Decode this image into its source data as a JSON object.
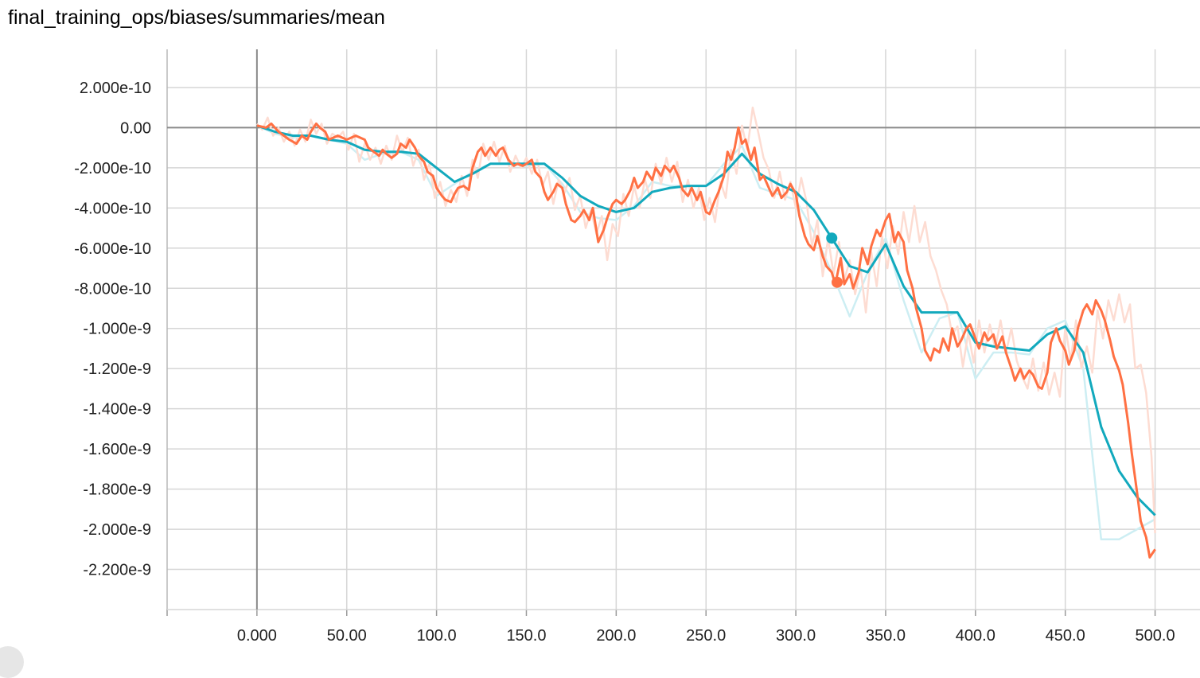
{
  "chart_title": "final_training_ops/biases/summaries/mean",
  "chart_data": {
    "type": "line",
    "title": "final_training_ops/biases/summaries/mean",
    "xlabel": "",
    "ylabel": "",
    "xlim": [
      -50,
      525
    ],
    "ylim": [
      -2.4e-09,
      3.9e-10
    ],
    "x_ticks": [
      0,
      50,
      100,
      150,
      200,
      250,
      300,
      350,
      400,
      450,
      500
    ],
    "x_tick_labels": [
      "0.000",
      "50.00",
      "100.0",
      "150.0",
      "200.0",
      "250.0",
      "300.0",
      "350.0",
      "400.0",
      "450.0",
      "500.0"
    ],
    "y_ticks": [
      2e-10,
      0,
      -2e-10,
      -4e-10,
      -6e-10,
      -8e-10,
      -1e-09,
      -1.2e-09,
      -1.4e-09,
      -1.6e-09,
      -1.8e-09,
      -2e-09,
      -2.2e-09
    ],
    "y_tick_labels": [
      "2.000e-10",
      "0.00",
      "-2.000e-10",
      "-4.000e-10",
      "-6.000e-10",
      "-8.000e-10",
      "-1.000e-9",
      "-1.200e-9",
      "-1.400e-9",
      "-1.600e-9",
      "-1.800e-9",
      "-2.000e-9",
      "-2.200e-9"
    ],
    "grid": true,
    "series": [
      {
        "color": "#12a9bd",
        "raw_color": "#cdeef3",
        "smoothed_x": [
          0,
          10,
          20,
          30,
          40,
          50,
          60,
          70,
          80,
          90,
          100,
          110,
          120,
          130,
          140,
          150,
          160,
          170,
          180,
          190,
          200,
          210,
          220,
          230,
          240,
          250,
          260,
          270,
          280,
          290,
          300,
          310,
          320,
          330,
          340,
          350,
          360,
          370,
          380,
          390,
          400,
          410,
          420,
          430,
          440,
          450,
          460,
          470,
          480,
          490,
          500
        ],
        "smoothed_y": [
          1e-11,
          -2e-11,
          -4e-11,
          -4e-11,
          -6e-11,
          -7e-11,
          -1.1e-10,
          -1.2e-10,
          -1.2e-10,
          -1.3e-10,
          -2e-10,
          -2.7e-10,
          -2.3e-10,
          -1.8e-10,
          -1.8e-10,
          -1.8e-10,
          -1.8e-10,
          -2.5e-10,
          -3.4e-10,
          -3.9e-10,
          -4.2e-10,
          -4e-10,
          -3.2e-10,
          -3e-10,
          -2.9e-10,
          -2.9e-10,
          -2.3e-10,
          -1.3e-10,
          -2.3e-10,
          -2.8e-10,
          -3.2e-10,
          -4.1e-10,
          -5.5e-10,
          -6.9e-10,
          -7.2e-10,
          -5.8e-10,
          -7.9e-10,
          -9.2e-10,
          -9.2e-10,
          -9.2e-10,
          -1.07e-09,
          -1.09e-09,
          -1.1e-09,
          -1.11e-09,
          -1.03e-09,
          -9.9e-10,
          -1.12e-09,
          -1.49e-09,
          -1.71e-09,
          -1.84e-09,
          -1.93e-09
        ],
        "raw_x": [
          0,
          10,
          20,
          30,
          40,
          50,
          60,
          70,
          80,
          90,
          100,
          110,
          120,
          130,
          140,
          150,
          160,
          170,
          180,
          190,
          200,
          210,
          220,
          230,
          240,
          250,
          260,
          270,
          280,
          290,
          300,
          310,
          320,
          330,
          340,
          350,
          360,
          370,
          380,
          390,
          400,
          410,
          420,
          430,
          440,
          450,
          460,
          470,
          480,
          490,
          500
        ],
        "raw_y": [
          1e-11,
          -3e-11,
          -5e-11,
          -4e-11,
          -6e-11,
          -8e-11,
          -1.6e-10,
          -1.3e-10,
          -1.2e-10,
          -1.6e-10,
          -3.4e-10,
          -2.8e-10,
          -2.2e-10,
          -1.8e-10,
          -1.8e-10,
          -1.9e-10,
          -1.8e-10,
          -2.8e-10,
          -4.2e-10,
          -4.5e-10,
          -4.6e-10,
          -3.9e-10,
          -2.7e-10,
          -2.9e-10,
          -2.9e-10,
          -2.9e-10,
          -1.8e-10,
          -9e-11,
          -3e-10,
          -3.3e-10,
          -3.6e-10,
          -5.2e-10,
          -7.2e-10,
          -9.4e-10,
          -7.2e-10,
          -5.5e-10,
          -8.6e-10,
          -1.12e-09,
          -9.5e-10,
          -9.2e-10,
          -1.25e-09,
          -1.12e-09,
          -1.12e-09,
          -1.13e-09,
          -1e-09,
          -9.6e-10,
          -1.2e-09,
          -2.05e-09,
          -2.05e-09,
          -2e-09,
          -1.95e-09
        ]
      },
      {
        "color": "#ff7043",
        "raw_color": "#fddcd2",
        "smoothed_x": [
          0,
          5,
          8,
          12,
          15,
          18,
          22,
          25,
          28,
          30,
          33,
          35,
          38,
          40,
          45,
          50,
          55,
          60,
          62,
          65,
          68,
          70,
          72,
          75,
          78,
          80,
          83,
          85,
          88,
          90,
          93,
          95,
          98,
          100,
          103,
          105,
          108,
          110,
          112,
          115,
          118,
          120,
          123,
          125,
          127,
          130,
          133,
          135,
          137,
          140,
          143,
          145,
          148,
          150,
          153,
          155,
          158,
          160,
          162,
          165,
          167,
          170,
          172,
          175,
          177,
          180,
          182,
          185,
          187,
          190,
          193,
          195,
          198,
          200,
          203,
          205,
          208,
          210,
          212,
          215,
          217,
          220,
          222,
          225,
          227,
          230,
          232,
          235,
          237,
          240,
          242,
          245,
          247,
          250,
          252,
          255,
          257,
          260,
          262,
          264,
          266,
          268,
          270,
          272,
          275,
          277,
          280,
          282,
          285,
          287,
          290,
          292,
          295,
          297,
          300,
          302,
          305,
          307,
          310,
          312,
          315,
          317,
          320,
          322,
          325,
          327,
          330,
          332,
          335,
          337,
          340,
          342,
          345,
          347,
          350,
          352,
          355,
          357,
          360,
          362,
          365,
          367,
          370,
          372,
          375,
          377,
          380,
          382,
          385,
          387,
          390,
          392,
          395,
          397,
          400,
          402,
          405,
          407,
          410,
          412,
          415,
          417,
          420,
          422,
          425,
          427,
          430,
          432,
          435,
          437,
          440,
          442,
          445,
          447,
          450,
          452,
          455,
          457,
          460,
          462,
          465,
          467,
          470,
          472,
          475,
          477,
          480,
          482,
          485,
          487,
          490,
          492,
          495,
          497,
          500
        ],
        "smoothed_y": [
          1e-11,
          0.0,
          2e-11,
          -2e-11,
          -4e-11,
          -6e-11,
          -8e-11,
          -4e-11,
          -6e-11,
          -2e-11,
          2e-11,
          0.0,
          -2e-11,
          -6e-11,
          -4e-11,
          -6e-11,
          -4e-11,
          -6e-11,
          -1e-10,
          -1.2e-10,
          -1.4e-10,
          -1.1e-10,
          -1.3e-10,
          -1.5e-10,
          -1.3e-10,
          -8e-11,
          -1e-10,
          -6e-11,
          -1e-10,
          -1.4e-10,
          -1.7e-10,
          -2.2e-10,
          -2.4e-10,
          -3e-10,
          -3.4e-10,
          -3.6e-10,
          -3.7e-10,
          -3.3e-10,
          -3e-10,
          -2.9e-10,
          -3.1e-10,
          -2e-10,
          -1.2e-10,
          -1e-10,
          -1.4e-10,
          -1e-10,
          -1.4e-10,
          -1.1e-10,
          -1e-10,
          -1.6e-10,
          -1.9e-10,
          -1.8e-10,
          -1.9e-10,
          -1.8e-10,
          -1.6e-10,
          -2.2e-10,
          -2.5e-10,
          -3.2e-10,
          -3.6e-10,
          -3.2e-10,
          -2.8e-10,
          -3e-10,
          -3.8e-10,
          -4.6e-10,
          -4.7e-10,
          -4.4e-10,
          -4.1e-10,
          -4.6e-10,
          -4e-10,
          -5.7e-10,
          -5.1e-10,
          -4.5e-10,
          -3.8e-10,
          -3.6e-10,
          -3.8e-10,
          -3.6e-10,
          -3.1e-10,
          -2.5e-10,
          -3e-10,
          -2.7e-10,
          -2.2e-10,
          -2.6e-10,
          -2e-10,
          -2.4e-10,
          -1.9e-10,
          -2.2e-10,
          -1.9e-10,
          -2.5e-10,
          -3.1e-10,
          -3.4e-10,
          -3e-10,
          -3.6e-10,
          -3.2e-10,
          -4.2e-10,
          -4.3e-10,
          -3.6e-10,
          -3.2e-10,
          -2.4e-10,
          -1.2e-10,
          -1.6e-10,
          -1e-10,
          0.0,
          -8e-11,
          -6e-11,
          -1.6e-10,
          -1e-10,
          -2.6e-10,
          -2.4e-10,
          -3e-10,
          -3.4e-10,
          -3e-10,
          -3.5e-10,
          -3.2e-10,
          -2.8e-10,
          -3.3e-10,
          -4.4e-10,
          -5.4e-10,
          -5.8e-10,
          -6.1e-10,
          -5.4e-10,
          -6.4e-10,
          -6.9e-10,
          -7.2e-10,
          -7.8e-10,
          -6.5e-10,
          -7.8e-10,
          -7.3e-10,
          -8e-10,
          -7.2e-10,
          -6e-10,
          -6.8e-10,
          -5.9e-10,
          -5.1e-10,
          -5.4e-10,
          -4.6e-10,
          -4.3e-10,
          -5.7e-10,
          -5.2e-10,
          -5.7e-10,
          -7.1e-10,
          -8e-10,
          -9e-10,
          -1e-09,
          -1.11e-09,
          -1.16e-09,
          -1.1e-09,
          -1.12e-09,
          -1.05e-09,
          -1.11e-09,
          -1e-09,
          -1.09e-09,
          -1.06e-09,
          -1e-09,
          -9.8e-10,
          -1.05e-09,
          -1.1e-09,
          -1.02e-09,
          -1.06e-09,
          -1.03e-09,
          -1.1e-09,
          -1.04e-09,
          -1.12e-09,
          -1.2e-09,
          -1.26e-09,
          -1.2e-09,
          -1.25e-09,
          -1.21e-09,
          -1.23e-09,
          -1.29e-09,
          -1.3e-09,
          -1.22e-09,
          -1.07e-09,
          -1e-09,
          -1.06e-09,
          -1.11e-09,
          -1.18e-09,
          -1.11e-09,
          -1e-09,
          -9.1e-10,
          -8.8e-10,
          -9.3e-10,
          -8.6e-10,
          -9.1e-10,
          -9.6e-10,
          -1.06e-09,
          -1.14e-09,
          -1.21e-09,
          -1.28e-09,
          -1.47e-09,
          -1.62e-09,
          -1.82e-09,
          -1.96e-09,
          -2.04e-09,
          -2.14e-09,
          -2.1e-09,
          -2.06e-09,
          -1.93e-09,
          -1.98e-09,
          -1.89e-09,
          -1.87e-09,
          -1.93e-09,
          -1.96e-09,
          -1.92e-09,
          -1.97e-09,
          -1.95e-09
        ],
        "raw_x": [
          0,
          3,
          6,
          9,
          12,
          15,
          18,
          21,
          24,
          27,
          30,
          33,
          36,
          39,
          42,
          45,
          48,
          51,
          54,
          57,
          60,
          63,
          66,
          69,
          72,
          75,
          78,
          81,
          84,
          87,
          90,
          93,
          96,
          99,
          102,
          105,
          108,
          111,
          114,
          117,
          120,
          123,
          126,
          129,
          132,
          135,
          138,
          141,
          144,
          147,
          150,
          153,
          156,
          159,
          162,
          165,
          168,
          171,
          174,
          177,
          180,
          183,
          186,
          189,
          192,
          195,
          198,
          201,
          204,
          207,
          210,
          213,
          216,
          219,
          222,
          225,
          228,
          231,
          234,
          237,
          240,
          243,
          246,
          249,
          252,
          255,
          258,
          261,
          264,
          267,
          270,
          273,
          276,
          279,
          282,
          285,
          288,
          291,
          294,
          297,
          300,
          303,
          306,
          309,
          312,
          315,
          318,
          321,
          324,
          327,
          330,
          333,
          336,
          339,
          342,
          345,
          348,
          351,
          354,
          357,
          360,
          363,
          366,
          369,
          372,
          375,
          378,
          381,
          384,
          387,
          390,
          393,
          396,
          399,
          402,
          405,
          408,
          411,
          414,
          417,
          420,
          423,
          426,
          429,
          432,
          435,
          438,
          441,
          444,
          447,
          450,
          453,
          456,
          459,
          462,
          465,
          468,
          471,
          474,
          477,
          480,
          483,
          486,
          489,
          492,
          495,
          498,
          500
        ],
        "raw_y": [
          2e-11,
          -1e-11,
          5e-11,
          -4e-11,
          0.0,
          -7e-11,
          -2e-11,
          -9e-11,
          -1e-11,
          -7e-11,
          4e-11,
          -3e-11,
          2e-11,
          -8e-11,
          -3e-11,
          -5e-11,
          -2e-11,
          -1.1e-10,
          -3e-11,
          -1.7e-10,
          -8e-11,
          -1.6e-10,
          -1e-10,
          -1.8e-10,
          -9e-11,
          -1.6e-10,
          -4e-11,
          -1.2e-10,
          -5e-11,
          -1.9e-10,
          -1.1e-10,
          -2.6e-10,
          -1.8e-10,
          -3.5e-10,
          -2.7e-10,
          -3.9e-10,
          -3.1e-10,
          -3.7e-10,
          -2.4e-10,
          -3.4e-10,
          -1.6e-10,
          -2.5e-10,
          -8e-11,
          -1.6e-10,
          -7e-11,
          -1.7e-10,
          -9e-11,
          -2.2e-10,
          -1.4e-10,
          -2e-10,
          -1.5e-10,
          -2.3e-10,
          -1.6e-10,
          -2.9e-10,
          -2.2e-10,
          -3.8e-10,
          -2.6e-10,
          -3.3e-10,
          -2.5e-10,
          -4.1e-10,
          -3.4e-10,
          -5e-10,
          -4.1e-10,
          -5.3e-10,
          -4.4e-10,
          -6.6e-10,
          -4.8e-10,
          -5.4e-10,
          -3.3e-10,
          -4.4e-10,
          -2.9e-10,
          -4e-10,
          -2.6e-10,
          -3.5e-10,
          -1.8e-10,
          -2.8e-10,
          -1.5e-10,
          -2.7e-10,
          -1.7e-10,
          -3.7e-10,
          -2.6e-10,
          -4e-10,
          -3e-10,
          -4.6e-10,
          -3.5e-10,
          -4.7e-10,
          -2.7e-10,
          -3.5e-10,
          -1.1e-10,
          -2.3e-10,
          1e-11,
          -1.1e-10,
          1e-10,
          -2e-11,
          -1.5e-10,
          -2.1e-10,
          -3.5e-10,
          -2.2e-10,
          -3.6e-10,
          -2.7e-10,
          -4e-10,
          -2.5e-10,
          -3.7e-10,
          -5.9e-10,
          -4.6e-10,
          -7.4e-10,
          -5.5e-10,
          -7.3e-10,
          -5.7e-10,
          -7.6e-10,
          -6.6e-10,
          -8.3e-10,
          -7e-10,
          -9.2e-10,
          -6.2e-10,
          -7.9e-10,
          -5.4e-10,
          -7e-10,
          -4.9e-10,
          -6.3e-10,
          -4.2e-10,
          -5.7e-10,
          -3.9e-10,
          -5.7e-10,
          -4.7e-10,
          -6.4e-10,
          -7.1e-10,
          -8.1e-10,
          -8.8e-10,
          -1.03e-09,
          -9.9e-10,
          -1.19e-09,
          -1.02e-09,
          -1.17e-09,
          -9.6e-10,
          -1.12e-09,
          -9.8e-10,
          -1.1e-09,
          -9.6e-10,
          -1.12e-09,
          -1e-09,
          -1.16e-09,
          -1.24e-09,
          -1.3e-09,
          -1.15e-09,
          -1.31e-09,
          -1.17e-09,
          -1.33e-09,
          -1.22e-09,
          -1.34e-09,
          -9.9e-10,
          -1.16e-09,
          -9.6e-10,
          -1.2e-09,
          -1.09e-09,
          -1.22e-09,
          -9.1e-10,
          -1.05e-09,
          -8.6e-10,
          -9.6e-10,
          -8.3e-10,
          -9.7e-10,
          -8.8e-10,
          -1.2e-09,
          -1.18e-09,
          -1.32e-09,
          -1.64e-09,
          -2.02e-09,
          -2.18e-09,
          -2.2e-09,
          -2e-09,
          -2.06e-09,
          -1.87e-09,
          -1.99e-09,
          -1.85e-09,
          -1.99e-09,
          -1.92e-09,
          -1.96e-09
        ]
      }
    ],
    "markers": [
      {
        "x": 320,
        "y": -5.5e-10,
        "color": "#12a9bd"
      },
      {
        "x": 323,
        "y": -7.7e-10,
        "color": "#ff7043"
      }
    ]
  }
}
